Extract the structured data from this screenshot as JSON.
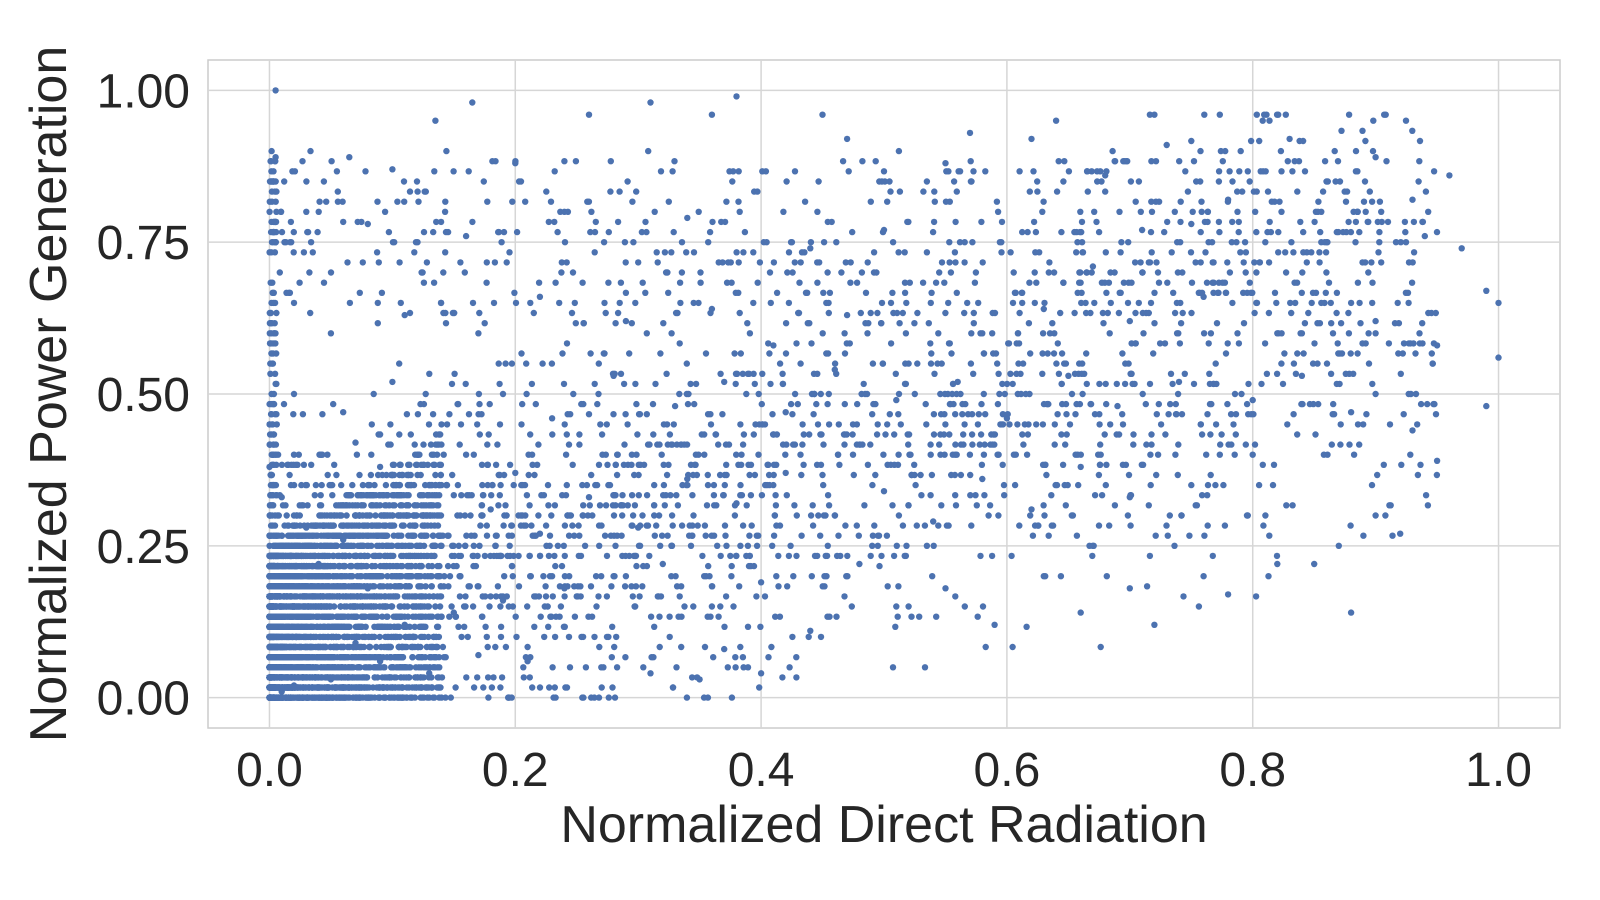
{
  "chart_data": {
    "type": "scatter",
    "title": "",
    "xlabel": "Normalized Direct Radiation",
    "ylabel": "Normalized Power Generation",
    "xlim": [
      -0.05,
      1.05
    ],
    "ylim": [
      -0.05,
      1.05
    ],
    "xticks": [
      0.0,
      0.2,
      0.4,
      0.6,
      0.8,
      1.0
    ],
    "xtick_labels": [
      "0.0",
      "0.2",
      "0.4",
      "0.6",
      "0.8",
      "1.0"
    ],
    "yticks": [
      0.0,
      0.25,
      0.5,
      0.75,
      1.0
    ],
    "ytick_labels": [
      "0.00",
      "0.25",
      "0.50",
      "0.75",
      "1.00"
    ],
    "grid": true,
    "legend": "none",
    "colors": {
      "points": "#4c72b0"
    },
    "series": [
      {
        "points": [
          [
            0.005,
            1.0
          ],
          [
            0.165,
            0.98
          ],
          [
            0.31,
            0.98
          ],
          [
            0.38,
            0.99
          ],
          [
            0.36,
            0.96
          ],
          [
            0.45,
            0.96
          ],
          [
            0.26,
            0.96
          ],
          [
            0.135,
            0.95
          ],
          [
            0.64,
            0.95
          ],
          [
            0.57,
            0.93
          ],
          [
            0.62,
            0.92
          ],
          [
            0.83,
            0.92
          ],
          [
            0.47,
            0.92
          ],
          [
            0.73,
            0.91
          ],
          [
            0.005,
            0.89
          ],
          [
            0.065,
            0.89
          ],
          [
            0.9,
            0.89
          ],
          [
            0.2,
            0.88
          ],
          [
            0.1,
            0.87
          ],
          [
            0.96,
            0.86
          ],
          [
            0.55,
            0.88
          ],
          [
            0.68,
            0.86
          ],
          [
            0.78,
            0.82
          ],
          [
            0.86,
            0.85
          ],
          [
            0.93,
            0.82
          ],
          [
            0.94,
            0.76
          ],
          [
            0.97,
            0.74
          ],
          [
            0.75,
            0.78
          ],
          [
            0.71,
            0.77
          ],
          [
            0.67,
            0.71
          ],
          [
            0.5,
            0.77
          ],
          [
            0.44,
            0.74
          ],
          [
            0.34,
            0.79
          ],
          [
            0.24,
            0.8
          ],
          [
            0.16,
            0.76
          ],
          [
            0.08,
            0.78
          ],
          [
            0.03,
            0.8
          ],
          [
            0.005,
            0.75
          ],
          [
            1.0,
            0.65
          ],
          [
            0.99,
            0.67
          ],
          [
            1.0,
            0.56
          ],
          [
            0.95,
            0.58
          ],
          [
            0.9,
            0.62
          ],
          [
            0.82,
            0.6
          ],
          [
            0.76,
            0.66
          ],
          [
            0.7,
            0.62
          ],
          [
            0.63,
            0.64
          ],
          [
            0.58,
            0.6
          ],
          [
            0.52,
            0.55
          ],
          [
            0.47,
            0.63
          ],
          [
            0.41,
            0.58
          ],
          [
            0.36,
            0.64
          ],
          [
            0.29,
            0.62
          ],
          [
            0.22,
            0.66
          ],
          [
            0.17,
            0.6
          ],
          [
            0.11,
            0.63
          ],
          [
            0.05,
            0.6
          ],
          [
            0.02,
            0.65
          ],
          [
            0.99,
            0.48
          ],
          [
            0.95,
            0.39
          ],
          [
            0.93,
            0.44
          ],
          [
            0.9,
            0.5
          ],
          [
            0.88,
            0.47
          ],
          [
            0.84,
            0.53
          ],
          [
            0.8,
            0.49
          ],
          [
            0.74,
            0.52
          ],
          [
            0.69,
            0.48
          ],
          [
            0.65,
            0.53
          ],
          [
            0.6,
            0.46
          ],
          [
            0.56,
            0.52
          ],
          [
            0.51,
            0.49
          ],
          [
            0.46,
            0.54
          ],
          [
            0.42,
            0.47
          ],
          [
            0.37,
            0.52
          ],
          [
            0.33,
            0.48
          ],
          [
            0.28,
            0.53
          ],
          [
            0.23,
            0.46
          ],
          [
            0.19,
            0.5
          ],
          [
            0.14,
            0.45
          ],
          [
            0.1,
            0.52
          ],
          [
            0.06,
            0.47
          ],
          [
            0.02,
            0.5
          ],
          [
            0.92,
            0.27
          ],
          [
            0.9,
            0.3
          ],
          [
            0.87,
            0.25
          ],
          [
            0.85,
            0.22
          ],
          [
            0.82,
            0.22
          ],
          [
            0.78,
            0.17
          ],
          [
            0.76,
            0.2
          ],
          [
            0.72,
            0.12
          ],
          [
            0.7,
            0.18
          ],
          [
            0.66,
            0.14
          ],
          [
            0.63,
            0.2
          ],
          [
            0.59,
            0.12
          ],
          [
            0.55,
            0.18
          ],
          [
            0.51,
            0.15
          ],
          [
            0.48,
            0.22
          ],
          [
            0.44,
            0.11
          ],
          [
            0.4,
            0.19
          ],
          [
            0.37,
            0.08
          ],
          [
            0.88,
            0.14
          ],
          [
            0.8,
            0.4
          ],
          [
            0.75,
            0.35
          ],
          [
            0.7,
            0.33
          ],
          [
            0.66,
            0.38
          ],
          [
            0.62,
            0.31
          ],
          [
            0.58,
            0.36
          ],
          [
            0.54,
            0.29
          ],
          [
            0.5,
            0.34
          ],
          [
            0.46,
            0.3
          ],
          [
            0.42,
            0.37
          ],
          [
            0.38,
            0.32
          ],
          [
            0.34,
            0.36
          ],
          [
            0.3,
            0.28
          ],
          [
            0.26,
            0.33
          ],
          [
            0.22,
            0.27
          ],
          [
            0.18,
            0.31
          ],
          [
            0.14,
            0.25
          ],
          [
            0.1,
            0.3
          ],
          [
            0.06,
            0.26
          ],
          [
            0.02,
            0.3
          ],
          [
            0.35,
            0.03
          ],
          [
            0.4,
            0.04
          ],
          [
            0.31,
            0.04
          ],
          [
            0.27,
            0.05
          ],
          [
            0.21,
            0.06
          ],
          [
            0.17,
            0.07
          ],
          [
            0.13,
            0.04
          ],
          [
            0.09,
            0.06
          ],
          [
            0.05,
            0.03
          ],
          [
            0.02,
            0.02
          ],
          [
            0.01,
            0.01
          ],
          [
            0.0,
            0.0
          ],
          [
            0.03,
            0.05
          ],
          [
            0.07,
            0.09
          ],
          [
            0.11,
            0.12
          ],
          [
            0.15,
            0.14
          ],
          [
            0.19,
            0.16
          ],
          [
            0.24,
            0.18
          ],
          [
            0.28,
            0.2
          ],
          [
            0.32,
            0.22
          ],
          [
            0.01,
            0.15
          ],
          [
            0.04,
            0.22
          ],
          [
            0.08,
            0.18
          ],
          [
            0.12,
            0.2
          ],
          [
            0.0,
            0.38
          ],
          [
            0.01,
            0.33
          ],
          [
            0.03,
            0.28
          ],
          [
            0.05,
            0.35
          ],
          [
            0.02,
            0.4
          ],
          [
            0.07,
            0.42
          ],
          [
            0.09,
            0.38
          ],
          [
            0.13,
            0.35
          ],
          [
            0.16,
            0.4
          ],
          [
            0.2,
            0.37
          ]
        ]
      }
    ]
  }
}
